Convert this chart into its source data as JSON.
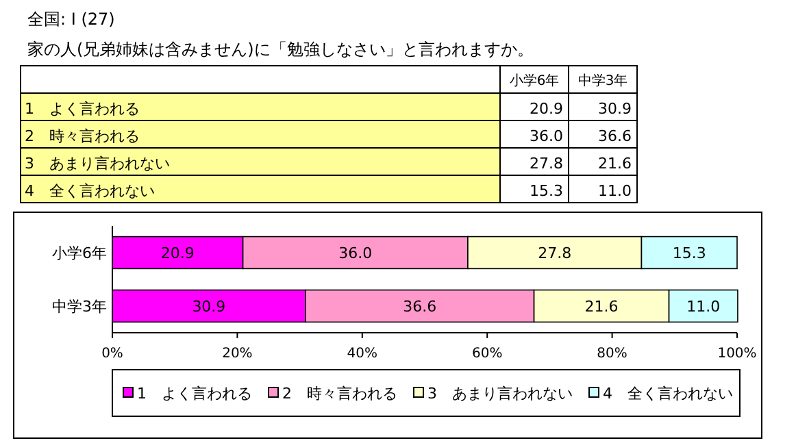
{
  "chart_data": {
    "type": "bar",
    "orientation": "horizontal",
    "stacked": true,
    "title": "全国: I (27)",
    "subtitle": "家の人(兄弟姉妹は含みません)に「勉強しなさい」と言われますか。",
    "categories": [
      "小学6年",
      "中学3年"
    ],
    "series": [
      {
        "name": "1　よく言われる",
        "color": "#ff00ff",
        "values": [
          20.9,
          30.9
        ],
        "value_labels": [
          "20.9",
          "30.9"
        ]
      },
      {
        "name": "2　時々言われる",
        "color": "#ff99cc",
        "values": [
          36.0,
          36.6
        ],
        "value_labels": [
          "36.0",
          "36.6"
        ]
      },
      {
        "name": "3　あまり言われない",
        "color": "#ffffcc",
        "values": [
          27.8,
          21.6
        ],
        "value_labels": [
          "27.8",
          "21.6"
        ]
      },
      {
        "name": "4　全く言われない",
        "color": "#ccffff",
        "values": [
          15.3,
          11.0
        ],
        "value_labels": [
          "15.3",
          "11.0"
        ]
      }
    ],
    "xlim": [
      0,
      100
    ],
    "xticks": [
      {
        "value": 0,
        "label": "0%"
      },
      {
        "value": 20,
        "label": "20%"
      },
      {
        "value": 40,
        "label": "40%"
      },
      {
        "value": 60,
        "label": "60%"
      },
      {
        "value": 80,
        "label": "80%"
      },
      {
        "value": 100,
        "label": "100%"
      }
    ],
    "legend": "bottom"
  }
}
